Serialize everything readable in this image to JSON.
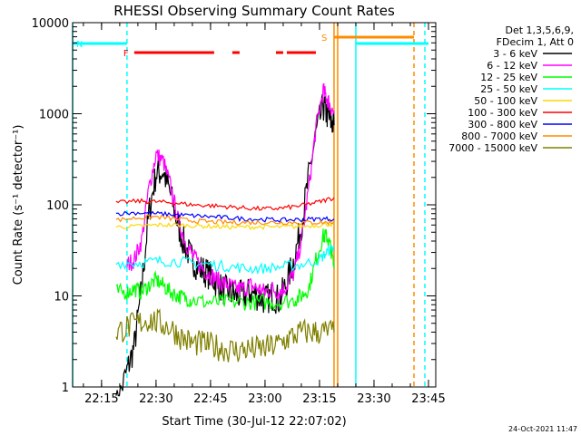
{
  "chart_data": {
    "type": "line",
    "title": "RHESSI Observing Summary Count Rates",
    "xlabel": "Start Time (30-Jul-12 22:07:02)",
    "ylabel": "Count Rate (s⁻¹ detector⁻¹)",
    "yscale": "log",
    "ylim": [
      1,
      10000
    ],
    "xlim": [
      "22:07:02",
      "23:47:00"
    ],
    "x_ticks": [
      "22:15",
      "22:30",
      "22:45",
      "23:00",
      "23:15",
      "23:30",
      "23:45"
    ],
    "y_ticks": [
      "1",
      "10",
      "100",
      "1000",
      "10000"
    ],
    "grid": false,
    "legend_placement": "top-right",
    "legend_header": [
      "Det 1,3,5,6,9,",
      "FDecim 1, Att 0"
    ],
    "series": [
      {
        "name": "3 - 6 keV",
        "color": "#000000",
        "x": [
          "22:19",
          "22:22",
          "22:24",
          "22:26",
          "22:28",
          "22:30",
          "22:32",
          "22:34",
          "22:36",
          "22:38",
          "22:40",
          "22:42",
          "22:44",
          "22:46",
          "22:48",
          "22:50",
          "22:52",
          "22:54",
          "22:56",
          "22:58",
          "23:00",
          "23:02",
          "23:04",
          "23:06",
          "23:08",
          "23:10",
          "23:12",
          "23:14",
          "23:16",
          "23:17",
          "23:18",
          "23:19"
        ],
        "y": [
          0.6,
          1.5,
          2.8,
          12,
          80,
          220,
          230,
          130,
          60,
          35,
          25,
          20,
          18,
          15,
          12,
          11,
          10,
          10,
          11,
          10,
          9,
          10,
          9,
          14,
          25,
          60,
          200,
          600,
          1200,
          1000,
          850,
          750
        ]
      },
      {
        "name": "6 - 12 keV",
        "color": "#ff00ff",
        "x": [
          "22:22",
          "22:24",
          "22:26",
          "22:28",
          "22:30",
          "22:32",
          "22:34",
          "22:36",
          "22:38",
          "22:40",
          "22:42",
          "22:44",
          "22:46",
          "22:48",
          "22:50",
          "22:52",
          "22:54",
          "22:56",
          "22:58",
          "23:00",
          "23:02",
          "23:04",
          "23:06",
          "23:08",
          "23:10",
          "23:12",
          "23:14",
          "23:16",
          "23:17",
          "23:18",
          "23:19"
        ],
        "y": [
          22,
          25,
          40,
          150,
          360,
          300,
          160,
          70,
          40,
          28,
          22,
          18,
          16,
          14,
          13,
          12,
          12,
          13,
          12,
          11,
          12,
          11,
          13,
          18,
          40,
          150,
          700,
          1800,
          1500,
          1200,
          1000
        ]
      },
      {
        "name": "12 - 25 keV",
        "color": "#00ff00",
        "x": [
          "22:19",
          "22:22",
          "22:24",
          "22:26",
          "22:28",
          "22:30",
          "22:32",
          "22:34",
          "22:36",
          "22:38",
          "22:40",
          "22:44",
          "22:48",
          "22:52",
          "22:56",
          "23:00",
          "23:04",
          "23:08",
          "23:10",
          "23:12",
          "23:14",
          "23:16",
          "23:17",
          "23:18",
          "23:19"
        ],
        "y": [
          11,
          11,
          12,
          11,
          13,
          15,
          13,
          11,
          10,
          9.5,
          9,
          8.5,
          8.5,
          8.5,
          8.5,
          8.5,
          8.5,
          9,
          10,
          12,
          25,
          45,
          45,
          35,
          20
        ]
      },
      {
        "name": "25 - 50 keV",
        "color": "#00ffff",
        "x": [
          "22:19",
          "22:25",
          "22:30",
          "22:35",
          "22:40",
          "22:45",
          "22:50",
          "22:55",
          "23:00",
          "23:05",
          "23:10",
          "23:15",
          "23:17",
          "23:19"
        ],
        "y": [
          23,
          23,
          24,
          24,
          23,
          22,
          21,
          20,
          20,
          21,
          22,
          25,
          30,
          35
        ]
      },
      {
        "name": "50 - 100 keV",
        "color": "#ffd700",
        "x": [
          "22:19",
          "22:25",
          "22:30",
          "22:35",
          "22:40",
          "22:45",
          "22:50",
          "22:55",
          "23:00",
          "23:05",
          "23:10",
          "23:15",
          "23:19"
        ],
        "y": [
          57,
          58,
          60,
          60,
          59,
          58,
          57,
          57,
          57,
          57,
          58,
          60,
          62
        ]
      },
      {
        "name": "100 - 300 keV",
        "color": "#ff0000",
        "x": [
          "22:19",
          "22:25",
          "22:30",
          "22:35",
          "22:40",
          "22:45",
          "22:50",
          "22:55",
          "23:00",
          "23:05",
          "23:10",
          "23:15",
          "23:19"
        ],
        "y": [
          105,
          110,
          108,
          105,
          100,
          98,
          95,
          92,
          90,
          92,
          98,
          108,
          120
        ]
      },
      {
        "name": "300 - 800 keV",
        "color": "#0000ff",
        "x": [
          "22:19",
          "22:25",
          "22:30",
          "22:35",
          "22:40",
          "22:45",
          "22:50",
          "22:55",
          "23:00",
          "23:05",
          "23:10",
          "23:15",
          "23:19"
        ],
        "y": [
          80,
          82,
          80,
          78,
          76,
          74,
          72,
          70,
          69,
          68,
          69,
          70,
          70
        ]
      },
      {
        "name": "800 - 7000 keV",
        "color": "#ff8c00",
        "x": [
          "22:19",
          "22:25",
          "22:30",
          "22:35",
          "22:40",
          "22:45",
          "22:50",
          "22:55",
          "23:00",
          "23:05",
          "23:10",
          "23:15",
          "23:19"
        ],
        "y": [
          68,
          72,
          74,
          70,
          67,
          65,
          64,
          64,
          64,
          64,
          64,
          64,
          64
        ]
      },
      {
        "name": "7000 - 15000 keV",
        "color": "#808000",
        "x": [
          "22:19",
          "22:22",
          "22:25",
          "22:28",
          "22:31",
          "22:34",
          "22:37",
          "22:40",
          "22:43",
          "22:46",
          "22:49",
          "22:52",
          "22:55",
          "22:58",
          "23:01",
          "23:04",
          "23:07",
          "23:10",
          "23:13",
          "23:16",
          "23:19"
        ],
        "y": [
          4,
          4.5,
          5,
          5.5,
          5,
          4.5,
          3.5,
          3,
          3,
          2.8,
          2.6,
          2.5,
          2.6,
          2.6,
          2.7,
          3,
          3.5,
          4,
          4,
          4,
          4
        ]
      }
    ],
    "flag_bars": [
      {
        "label": "N",
        "color": "#00ffff",
        "segments": [
          [
            "22:07:02",
            "22:22"
          ],
          [
            "23:25",
            "23:45"
          ]
        ]
      },
      {
        "label": "F",
        "color": "#ff0000",
        "segments": [
          [
            "22:24",
            "22:46"
          ],
          [
            "22:51",
            "22:53"
          ],
          [
            "23:03",
            "23:05"
          ],
          [
            "23:06",
            "23:14"
          ]
        ]
      },
      {
        "label": "S",
        "color": "#ff8c00",
        "segments": [
          [
            "23:19",
            "23:41"
          ]
        ]
      }
    ],
    "vertical_markers": [
      {
        "x": "22:07:02",
        "color": "#00ffff",
        "style": "solid"
      },
      {
        "x": "22:22",
        "color": "#00ffff",
        "style": "dashed"
      },
      {
        "x": "23:19",
        "color": "#ff8c00",
        "style": "solid"
      },
      {
        "x": "23:20",
        "color": "#ff8c00",
        "style": "solid"
      },
      {
        "x": "23:25",
        "color": "#00ffff",
        "style": "solid"
      },
      {
        "x": "23:41",
        "color": "#ff8c00",
        "style": "dashed"
      },
      {
        "x": "23:44",
        "color": "#00ffff",
        "style": "dashed"
      }
    ],
    "timestamp": "24-Oct-2021 11:47"
  }
}
